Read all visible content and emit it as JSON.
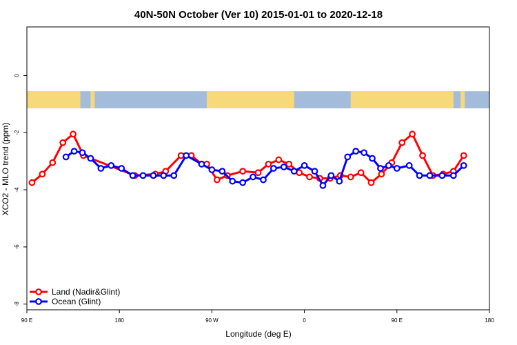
{
  "chart_data": {
    "type": "line",
    "title": "40N-50N October (Ver 10)   2015-01-01 to 2020-12-18",
    "xlabel": "Longitude (deg E)",
    "ylabel": "XCO2 - MLO trend (ppm)",
    "xlim": [
      90,
      540
    ],
    "ylim": [
      -8.2,
      1.7
    ],
    "x_ticks": [
      {
        "value": 90,
        "label": "90 E"
      },
      {
        "value": 180,
        "label": "180"
      },
      {
        "value": 270,
        "label": "90 W"
      },
      {
        "value": 360,
        "label": "0"
      },
      {
        "value": 450,
        "label": "90 E"
      },
      {
        "value": 540,
        "label": "180"
      }
    ],
    "y_ticks": [
      {
        "value": 0,
        "label": "0"
      },
      {
        "value": -2,
        "label": "-2"
      },
      {
        "value": -4,
        "label": "-4"
      },
      {
        "value": -6,
        "label": "-6"
      },
      {
        "value": -8,
        "label": "-8"
      }
    ],
    "legend_position": "bottom-left",
    "map_strip": {
      "y_top": -0.55,
      "y_bottom": -1.15,
      "ocean_color": "#a4bcdc",
      "land_color": "#f7d97a"
    },
    "series": [
      {
        "name": "Land (Nadir&Glint)",
        "color": "#ff0000",
        "x": [
          95,
          105,
          115,
          125,
          135,
          145,
          195,
          215,
          225,
          240,
          250,
          260,
          265,
          275,
          285,
          300,
          315,
          325,
          335,
          345,
          355,
          365,
          375,
          385,
          395,
          405,
          415,
          425,
          435,
          445,
          455,
          465,
          475,
          485,
          495,
          505,
          515
        ],
        "y": [
          -3.75,
          -3.45,
          -3.05,
          -2.35,
          -2.05,
          -2.8,
          -3.5,
          -3.45,
          -3.35,
          -2.8,
          -2.8,
          -3.1,
          -3.1,
          -3.65,
          -3.5,
          -3.35,
          -3.4,
          -3.1,
          -2.95,
          -3.1,
          -3.4,
          -3.55,
          -3.6,
          -3.6,
          -3.5,
          -3.55,
          -3.4,
          -3.75,
          -3.45,
          -3.05,
          -2.35,
          -2.05,
          -2.8,
          -3.5,
          -3.45,
          -3.35,
          -2.8
        ]
      },
      {
        "name": "Ocean (Glint)",
        "color": "#0000ff",
        "x": [
          128,
          136,
          144,
          152,
          162,
          172,
          182,
          193,
          203,
          213,
          223,
          233,
          245,
          260,
          270,
          280,
          290,
          300,
          310,
          320,
          330,
          340,
          350,
          360,
          370,
          378,
          386,
          394,
          402,
          410,
          418,
          426,
          434,
          442,
          450,
          462,
          472,
          482,
          494,
          505,
          515
        ],
        "y": [
          -2.85,
          -2.65,
          -2.7,
          -2.9,
          -3.25,
          -3.15,
          -3.25,
          -3.5,
          -3.5,
          -3.5,
          -3.5,
          -3.5,
          -2.8,
          -3.1,
          -3.3,
          -3.35,
          -3.7,
          -3.75,
          -3.55,
          -3.65,
          -3.25,
          -3.2,
          -3.35,
          -3.15,
          -3.35,
          -3.85,
          -3.5,
          -3.7,
          -2.85,
          -2.65,
          -2.7,
          -2.9,
          -3.25,
          -3.15,
          -3.25,
          -3.15,
          -3.5,
          -3.5,
          -3.5,
          -3.5,
          -3.15
        ]
      }
    ]
  }
}
